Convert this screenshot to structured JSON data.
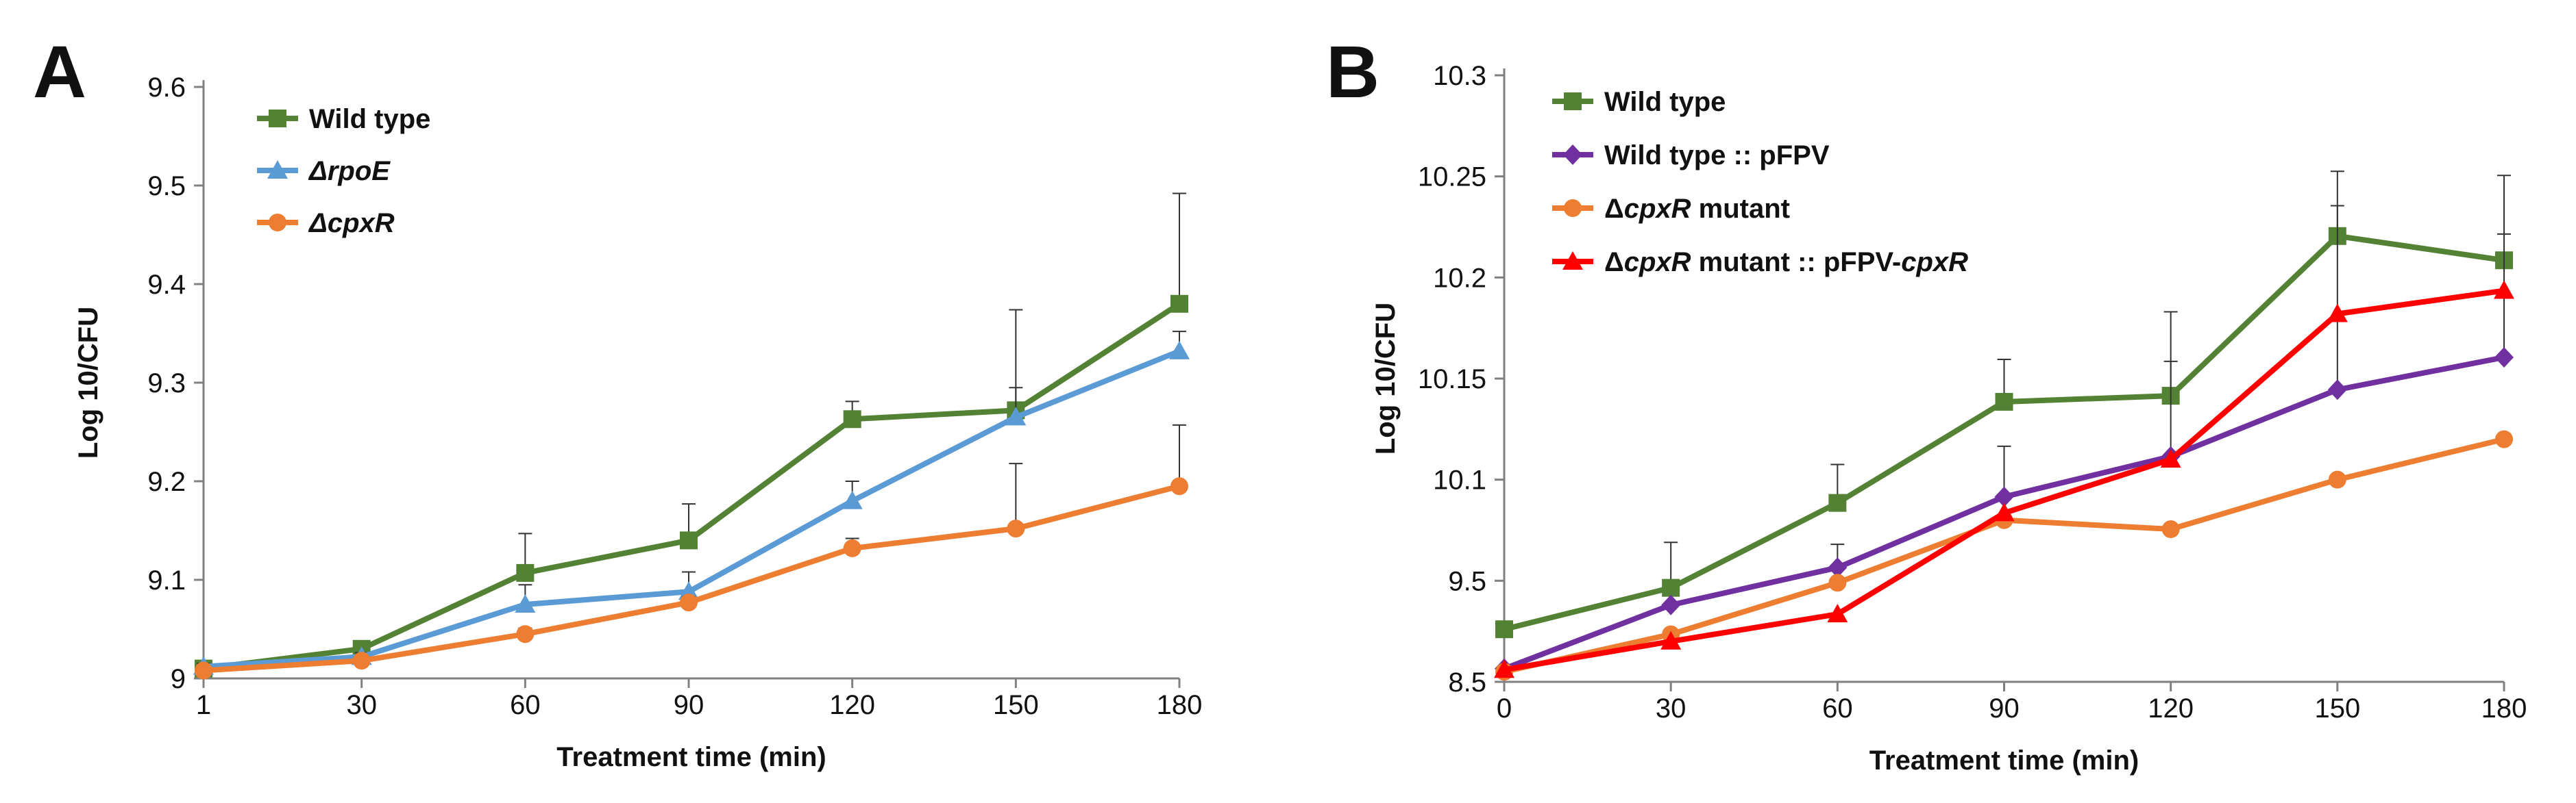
{
  "chart_data": [
    {
      "panel": "A",
      "type": "line",
      "xlabel": "Treatment time (min)",
      "ylabel": "Log 10/CFU",
      "x": [
        1,
        30,
        60,
        90,
        120,
        150,
        180
      ],
      "x_tick_labels": [
        "1",
        "30",
        "60",
        "90",
        "120",
        "150",
        "180"
      ],
      "y_tick_labels": [
        "9",
        "9.1",
        "9.2",
        "9.3",
        "9.4",
        "9.5",
        "9.6"
      ],
      "ylim": [
        9,
        9.6
      ],
      "grid": false,
      "legend_position": "top-left",
      "series": [
        {
          "name": "Wild type",
          "legend_parts": [
            {
              "text": "Wild type",
              "italic": false
            }
          ],
          "color": "#548235",
          "marker": "square",
          "values": [
            9.01,
            9.03,
            9.107,
            9.14,
            9.263,
            9.272,
            9.38
          ],
          "errors": [
            0.004,
            0.004,
            0.04,
            0.037,
            0.018,
            0.102,
            0.112
          ]
        },
        {
          "name": "ΔrpoE",
          "legend_parts": [
            {
              "text": "Δ",
              "italic": true
            },
            {
              "text": "rpoE",
              "italic": true
            }
          ],
          "color": "#5B9BD5",
          "marker": "triangle",
          "values": [
            9.012,
            9.022,
            9.075,
            9.088,
            9.18,
            9.265,
            9.332
          ],
          "errors": [
            0.003,
            0.004,
            0.02,
            0.02,
            0.02,
            0.03,
            0.02
          ]
        },
        {
          "name": "ΔcpxR",
          "legend_parts": [
            {
              "text": "Δ",
              "italic": true
            },
            {
              "text": "cpxR",
              "italic": true
            }
          ],
          "color": "#ED7D31",
          "marker": "circle",
          "values": [
            9.008,
            9.018,
            9.045,
            9.077,
            9.132,
            9.152,
            9.195
          ],
          "errors": [
            0.003,
            0.003,
            0.006,
            0.006,
            0.01,
            0.066,
            0.062
          ]
        }
      ]
    },
    {
      "panel": "B",
      "type": "line",
      "xlabel": "Treatment time (min)",
      "ylabel": "Log 10/CFU",
      "x": [
        0,
        30,
        60,
        90,
        120,
        150,
        180
      ],
      "x_tick_labels": [
        "0",
        "30",
        "60",
        "90",
        "120",
        "150",
        "180"
      ],
      "y_tick_labels": [
        "8.5",
        "9.5",
        "10.1",
        "10.15",
        "10.2",
        "10.25",
        "10.3"
      ],
      "y_axis_note": "axis is drawn with 7 equally spaced, non-linear tick labels; values are given in tick-slot units (0 = 8.5 ... 6 = 10.3)",
      "ylim_slots": [
        0,
        6
      ],
      "grid": false,
      "legend_position": "top-left",
      "series": [
        {
          "name": "Wild type",
          "legend_parts": [
            {
              "text": "Wild type",
              "italic": false
            }
          ],
          "color": "#548235",
          "marker": "square",
          "values": [
            0.52,
            0.93,
            1.77,
            2.77,
            2.83,
            4.41,
            4.17
          ],
          "errors": [
            0,
            0.45,
            0.38,
            0.42,
            0.83,
            0.64,
            0.84
          ]
        },
        {
          "name": "Wild type :: pFPV",
          "legend_parts": [
            {
              "text": "Wild type :: pFPV",
              "italic": false
            }
          ],
          "color": "#7030A0",
          "marker": "diamond",
          "values": [
            0.13,
            0.76,
            1.13,
            1.83,
            2.23,
            2.89,
            3.21
          ],
          "errors": [
            0,
            0,
            0.23,
            0.5,
            0.94,
            1.82,
            1.22
          ]
        },
        {
          "name": "ΔcpxR mutant",
          "legend_parts": [
            {
              "text": "Δ",
              "italic": false
            },
            {
              "text": "cpxR",
              "italic": true
            },
            {
              "text": " mutant",
              "italic": false
            }
          ],
          "color": "#ED7D31",
          "marker": "circle",
          "values": [
            0.1,
            0.47,
            0.98,
            1.6,
            1.51,
            2.0,
            2.4
          ],
          "errors": [
            0,
            0,
            0,
            0,
            0,
            0,
            0
          ]
        },
        {
          "name": "ΔcpxR mutant :: pFPV-cpxR",
          "legend_parts": [
            {
              "text": "Δ",
              "italic": false
            },
            {
              "text": "cpxR",
              "italic": true
            },
            {
              "text": " mutant :: pFPV-",
              "italic": false
            },
            {
              "text": "cpxR",
              "italic": true
            }
          ],
          "color": "#FF0000",
          "marker": "triangle",
          "values": [
            0.12,
            0.4,
            0.67,
            1.67,
            2.2,
            3.64,
            3.87
          ],
          "errors": [
            0,
            0,
            0,
            0,
            0,
            0,
            0
          ]
        }
      ]
    }
  ],
  "panels": [
    "A",
    "B"
  ]
}
